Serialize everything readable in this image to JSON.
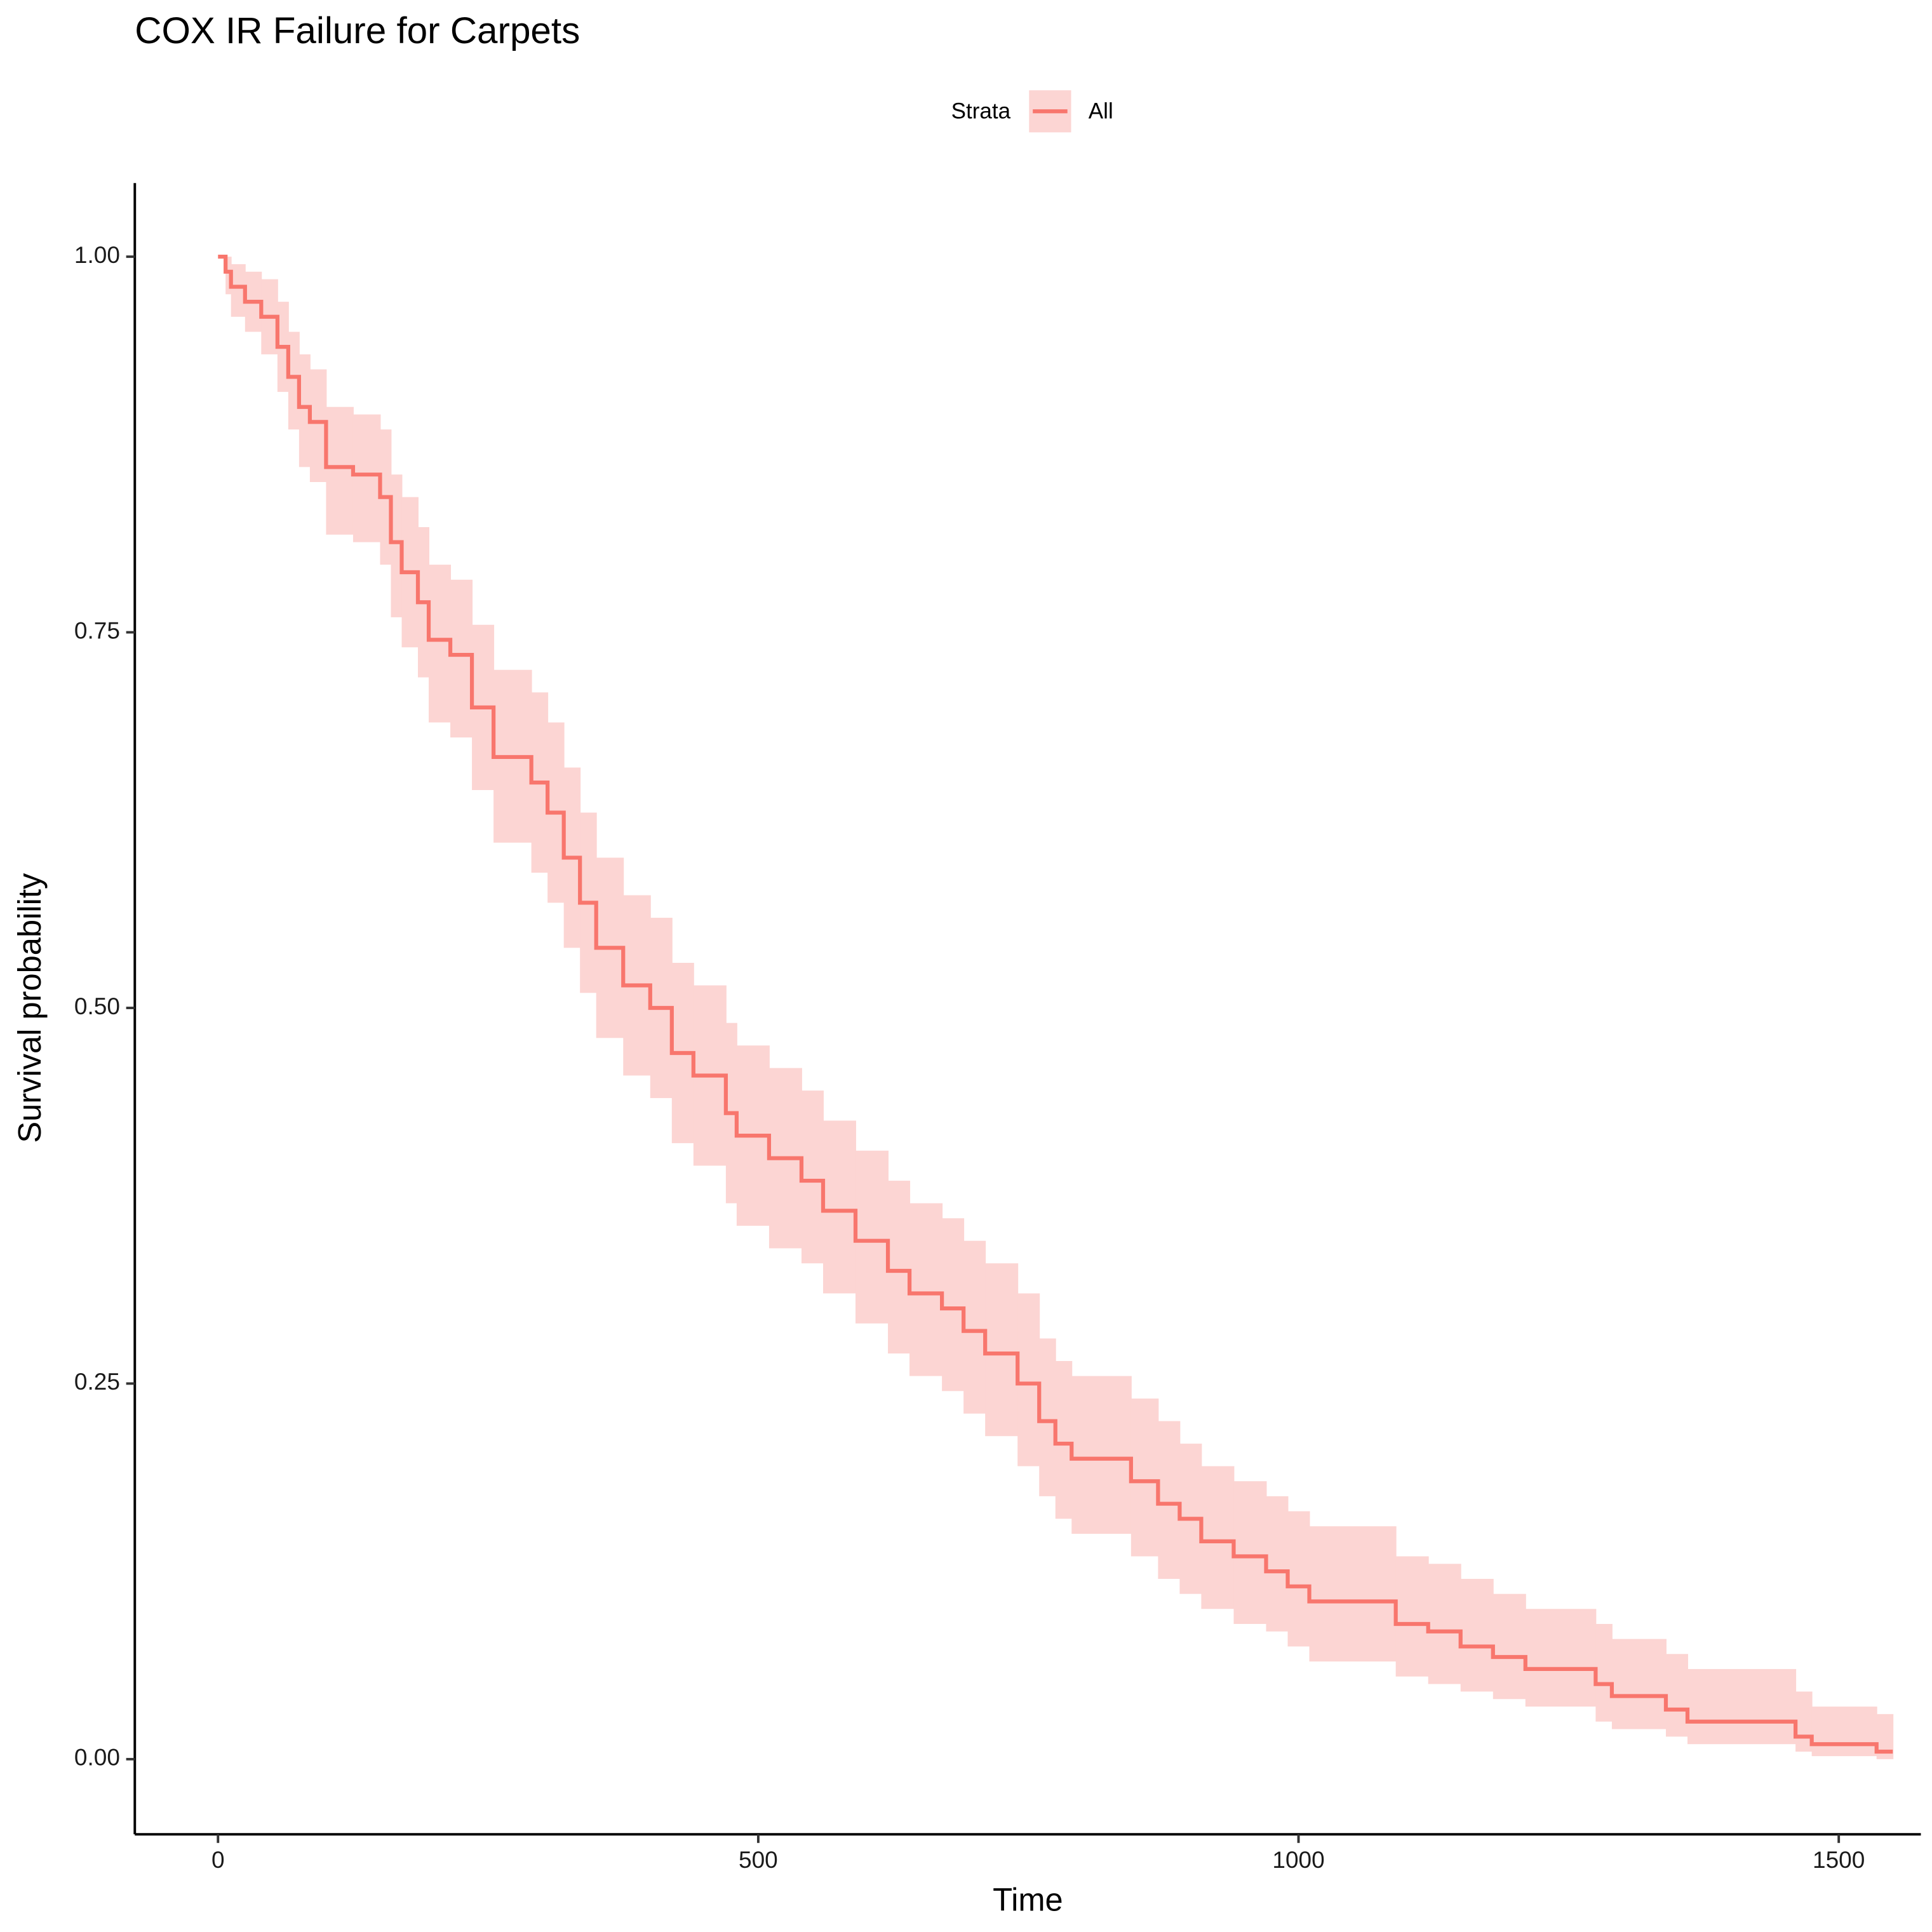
{
  "chart_data": {
    "type": "line",
    "title": "COX IR Failure for Carpets",
    "xlabel": "Time",
    "ylabel": "Survival probability",
    "legend_title": "Strata",
    "legend": "top",
    "xlim": [
      -77,
      1576
    ],
    "ylim": [
      -0.05,
      1.049
    ],
    "xticks": [
      0,
      500,
      1000,
      1500
    ],
    "yticks": [
      {
        "value": 0,
        "label": "0.00"
      },
      0.25,
      {
        "value": 0.5,
        "label": "0.50"
      },
      0.75,
      {
        "value": 1,
        "label": "1.00"
      }
    ],
    "x": [
      0,
      7,
      12,
      25,
      40,
      55,
      65,
      75,
      85,
      100,
      125,
      150,
      160,
      170,
      185,
      195,
      215,
      235,
      255,
      290,
      305,
      320,
      335,
      350,
      375,
      400,
      420,
      440,
      470,
      480,
      510,
      540,
      560,
      590,
      620,
      640,
      670,
      690,
      710,
      740,
      760,
      775,
      790,
      845,
      870,
      890,
      910,
      940,
      970,
      990,
      1010,
      1090,
      1120,
      1150,
      1180,
      1210,
      1275,
      1290,
      1340,
      1360,
      1460,
      1475,
      1535,
      1550
    ],
    "series": [
      {
        "name": "All",
        "color": "#f8766d",
        "band_color": "#fcd5d3",
        "values": [
          1.0,
          0.99,
          0.98,
          0.97,
          0.96,
          0.94,
          0.92,
          0.9,
          0.89,
          0.86,
          0.855,
          0.84,
          0.81,
          0.79,
          0.77,
          0.745,
          0.735,
          0.7,
          0.667,
          0.65,
          0.63,
          0.6,
          0.57,
          0.54,
          0.515,
          0.5,
          0.47,
          0.455,
          0.43,
          0.415,
          0.4,
          0.385,
          0.365,
          0.345,
          0.325,
          0.31,
          0.3,
          0.285,
          0.27,
          0.25,
          0.225,
          0.21,
          0.2,
          0.185,
          0.17,
          0.16,
          0.145,
          0.135,
          0.125,
          0.115,
          0.105,
          0.09,
          0.085,
          0.075,
          0.068,
          0.06,
          0.05,
          0.042,
          0.033,
          0.025,
          0.015,
          0.01,
          0.005,
          0.005
        ],
        "lower": [
          1.0,
          0.975,
          0.96,
          0.95,
          0.935,
          0.91,
          0.885,
          0.86,
          0.85,
          0.815,
          0.81,
          0.795,
          0.76,
          0.74,
          0.72,
          0.69,
          0.68,
          0.645,
          0.61,
          0.59,
          0.57,
          0.54,
          0.51,
          0.48,
          0.455,
          0.44,
          0.41,
          0.395,
          0.37,
          0.355,
          0.34,
          0.33,
          0.31,
          0.29,
          0.27,
          0.255,
          0.245,
          0.23,
          0.215,
          0.195,
          0.175,
          0.16,
          0.15,
          0.135,
          0.12,
          0.11,
          0.1,
          0.09,
          0.085,
          0.075,
          0.065,
          0.055,
          0.05,
          0.045,
          0.04,
          0.035,
          0.025,
          0.02,
          0.015,
          0.01,
          0.005,
          0.002,
          0.0,
          0.0
        ],
        "upper": [
          1.0,
          1.0,
          0.995,
          0.99,
          0.985,
          0.97,
          0.95,
          0.935,
          0.925,
          0.9,
          0.895,
          0.885,
          0.855,
          0.84,
          0.82,
          0.795,
          0.785,
          0.755,
          0.725,
          0.71,
          0.69,
          0.66,
          0.63,
          0.6,
          0.575,
          0.56,
          0.53,
          0.515,
          0.49,
          0.475,
          0.46,
          0.445,
          0.425,
          0.405,
          0.385,
          0.37,
          0.36,
          0.345,
          0.33,
          0.31,
          0.28,
          0.265,
          0.255,
          0.24,
          0.225,
          0.21,
          0.195,
          0.185,
          0.175,
          0.165,
          0.155,
          0.135,
          0.13,
          0.12,
          0.11,
          0.1,
          0.09,
          0.08,
          0.07,
          0.06,
          0.045,
          0.035,
          0.03,
          0.03
        ]
      }
    ]
  }
}
